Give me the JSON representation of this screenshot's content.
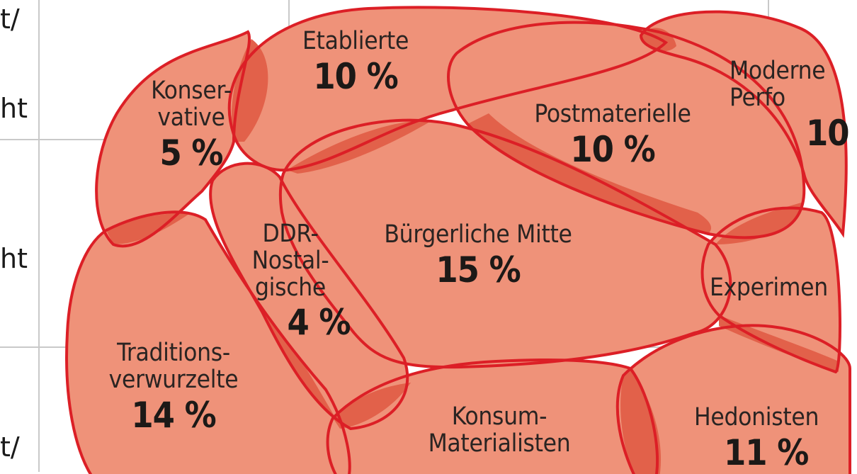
{
  "left_axis_labels": [
    "t/",
    "ht",
    "ht",
    "t/"
  ],
  "milieus": [
    {
      "id": "konservative",
      "name": "Konser-\nvative",
      "percent": "5 %"
    },
    {
      "id": "etablierte",
      "name": "Etablierte",
      "percent": "10 %"
    },
    {
      "id": "postmaterielle",
      "name": "Postmaterielle",
      "percent": "10 %"
    },
    {
      "id": "moderne-performer",
      "name": "Moderne\nPerfo",
      "percent": "10"
    },
    {
      "id": "ddr-nostalgische",
      "name": "DDR-\nNostal-\ngische",
      "percent": "4 %"
    },
    {
      "id": "buergerliche-mitte",
      "name": "Bürgerliche Mitte",
      "percent": "15 %"
    },
    {
      "id": "experimentalisten",
      "name": "Experimen",
      "percent": ""
    },
    {
      "id": "traditionsverwurzelte",
      "name": "Traditions-\nverwurzelte",
      "percent": "14 %"
    },
    {
      "id": "konsum-materialisten",
      "name": "Konsum-\nMaterialisten",
      "percent": ""
    },
    {
      "id": "hedonisten",
      "name": "Hedonisten",
      "percent": "11 %"
    }
  ],
  "colors": {
    "fill": "#ef9279",
    "overlap": "#e2614a",
    "outline": "#dc1f26",
    "grid": "#c9c9c9",
    "background": "#ffffff"
  }
}
